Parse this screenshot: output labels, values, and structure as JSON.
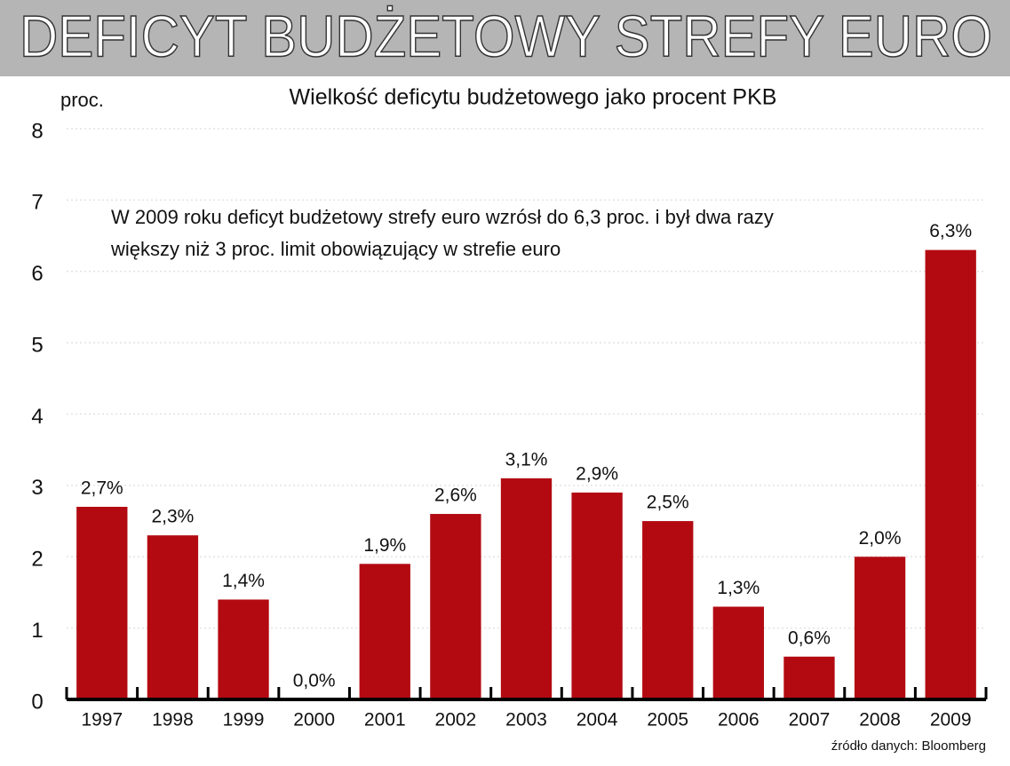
{
  "chart_data": {
    "type": "bar",
    "title": "DEFICYT BUDŻETOWY STREFY EURO",
    "subtitle": "Wielkość deficytu budżetowego jako procent PKB",
    "y_label": "proc.",
    "annotation": [
      "W 2009 roku deficyt budżetowy strefy euro wzrósł do 6,3 proc. i był dwa razy",
      "większy niż 3 proc. limit obowiązujący w strefie euro"
    ],
    "source": "źródło danych: Bloomberg",
    "categories": [
      "1997",
      "1998",
      "1999",
      "2000",
      "2001",
      "2002",
      "2003",
      "2004",
      "2005",
      "2006",
      "2007",
      "2008",
      "2009"
    ],
    "values": [
      2.7,
      2.3,
      1.4,
      0.0,
      1.9,
      2.6,
      3.1,
      2.9,
      2.5,
      1.3,
      0.6,
      2.0,
      6.3
    ],
    "value_labels": [
      "2,7%",
      "2,3%",
      "1,4%",
      "0,0%",
      "1,9%",
      "2,6%",
      "3,1%",
      "2,9%",
      "2,5%",
      "1,3%",
      "0,6%",
      "2,0%",
      "6,3%"
    ],
    "color": "#b30a12",
    "ylim": [
      0,
      8
    ],
    "yticks": [
      0,
      1,
      2,
      3,
      4,
      5,
      6,
      7,
      8
    ],
    "grid": true
  }
}
